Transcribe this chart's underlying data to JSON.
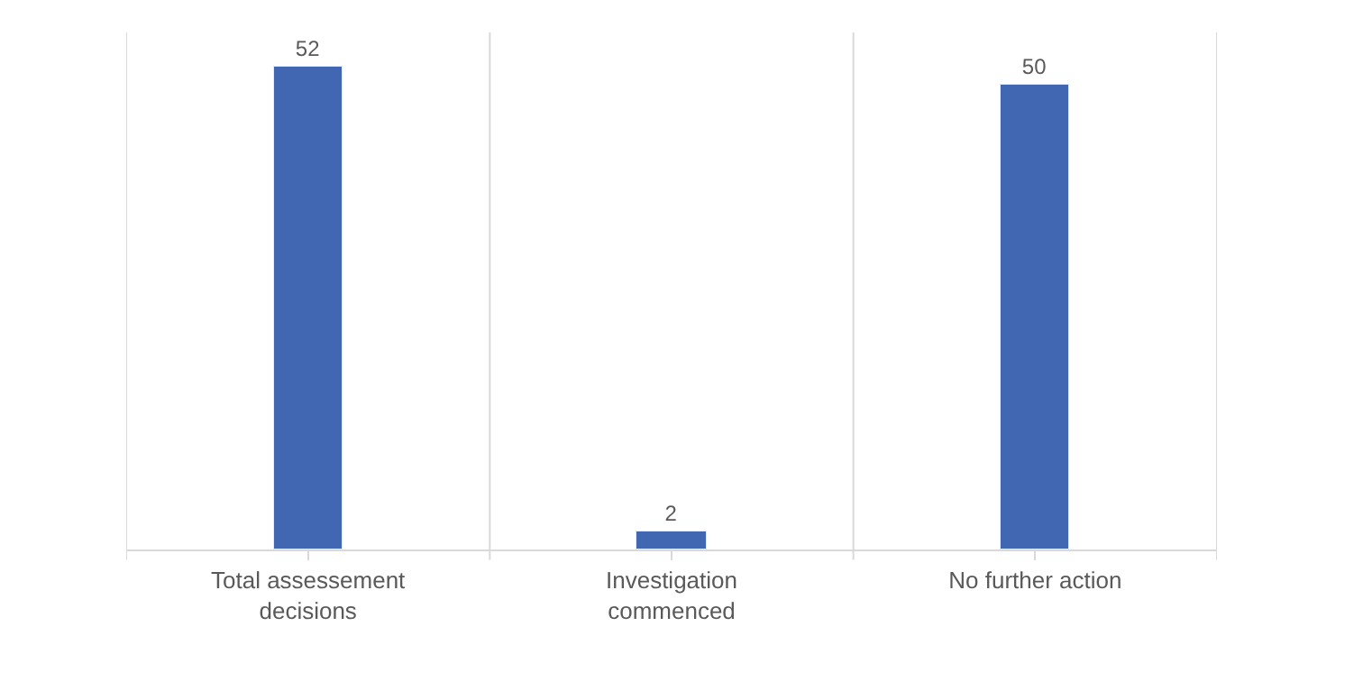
{
  "chart_data": {
    "type": "bar",
    "categories": [
      "Total assessement decisions",
      "Investigation commenced",
      "No further action"
    ],
    "values": [
      52,
      2,
      50
    ],
    "color": "#4267b2",
    "data_labels": true,
    "grid": "x"
  }
}
